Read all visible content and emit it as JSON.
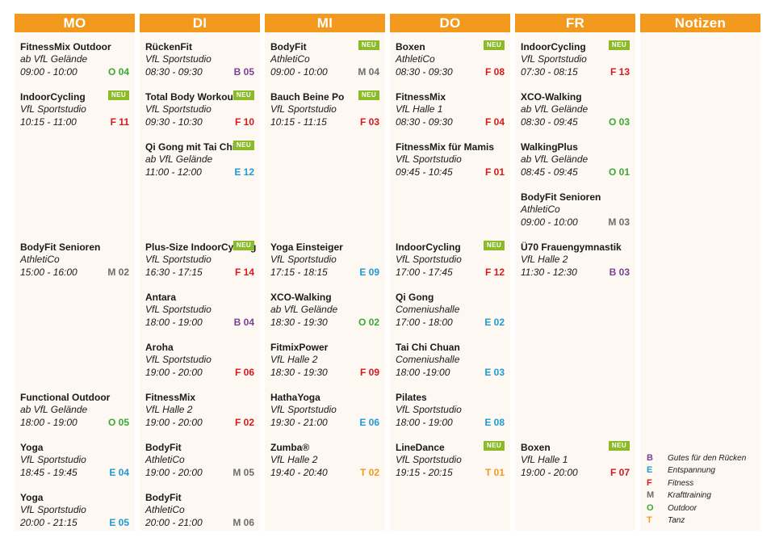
{
  "colors": {
    "header": "#f39a1e",
    "neu_badge": "#8bbb29",
    "column_bg": "#fdf8f1",
    "B": "#7b3f98",
    "E": "#1e9ad6",
    "F": "#d7191c",
    "M": "#6d6d6d",
    "O": "#3aa935",
    "T": "#f39a1e"
  },
  "days": [
    {
      "label": "MO",
      "entries": [
        {
          "slot": 0,
          "title": "FitnessMix Outdoor",
          "location": "ab VfL Gelände",
          "time": "09:00 - 10:00",
          "code": "O 04",
          "cat": "O",
          "neu": false
        },
        {
          "slot": 1,
          "title": "IndoorCycling",
          "location": "VfL Sportstudio",
          "time": "10:15 - 11:00",
          "code": "F 11",
          "cat": "F",
          "neu": true
        },
        {
          "slot": 4,
          "title": "BodyFit Senioren",
          "location": "AthletiCo",
          "time": "15:00 - 16:00",
          "code": "M 02",
          "cat": "M",
          "neu": false
        },
        {
          "slot": 7,
          "title": "Functional Outdoor",
          "location": "ab VfL Gelände",
          "time": "18:00 - 19:00",
          "code": "O 05",
          "cat": "O",
          "neu": false
        },
        {
          "slot": 8,
          "title": "Yoga",
          "location": "VfL Sportstudio",
          "time": "18:45 - 19:45",
          "code": "E 04",
          "cat": "E",
          "neu": false
        },
        {
          "slot": 9,
          "title": "Yoga",
          "location": "VfL Sportstudio",
          "time": "20:00 - 21:15",
          "code": "E 05",
          "cat": "E",
          "neu": false
        }
      ]
    },
    {
      "label": "DI",
      "entries": [
        {
          "slot": 0,
          "title": "RückenFit",
          "location": "VfL Sportstudio",
          "time": "08:30 - 09:30",
          "code": "B 05",
          "cat": "B",
          "neu": false
        },
        {
          "slot": 1,
          "title": "Total Body Workout",
          "location": "VfL Sportstudio",
          "time": "09:30 - 10:30",
          "code": "F 10",
          "cat": "F",
          "neu": true
        },
        {
          "slot": 2,
          "title": "Qi Gong mit Tai Chi",
          "location": "ab VfL Gelände",
          "time": "11:00 - 12:00",
          "code": "E 12",
          "cat": "E",
          "neu": true
        },
        {
          "slot": 4,
          "title": "Plus-Size IndoorCycling",
          "location": "VfL Sportstudio",
          "time": "16:30 - 17:15",
          "code": "F 14",
          "cat": "F",
          "neu": true
        },
        {
          "slot": 5,
          "title": "Antara",
          "location": "VfL Sportstudio",
          "time": "18:00 - 19:00",
          "code": "B 04",
          "cat": "B",
          "neu": false
        },
        {
          "slot": 6,
          "title": "Aroha",
          "location": "VfL Sportstudio",
          "time": "19:00 - 20:00",
          "code": "F 06",
          "cat": "F",
          "neu": false
        },
        {
          "slot": 7,
          "title": "FitnessMix",
          "location": "VfL Halle 2",
          "time": "19:00 - 20:00",
          "code": "F 02",
          "cat": "F",
          "neu": false
        },
        {
          "slot": 8,
          "title": "BodyFit",
          "location": "AthletiCo",
          "time": "19:00 - 20:00",
          "code": "M 05",
          "cat": "M",
          "neu": false
        },
        {
          "slot": 9,
          "title": "BodyFit",
          "location": "AthletiCo",
          "time": "20:00 - 21:00",
          "code": "M 06",
          "cat": "M",
          "neu": false
        }
      ]
    },
    {
      "label": "MI",
      "entries": [
        {
          "slot": 0,
          "title": "BodyFit",
          "location": "AthletiCo",
          "time": "09:00 - 10:00",
          "code": "M 04",
          "cat": "M",
          "neu": true
        },
        {
          "slot": 1,
          "title": "Bauch Beine Po",
          "location": "VfL Sportstudio",
          "time": "10:15 - 11:15",
          "code": "F 03",
          "cat": "F",
          "neu": true
        },
        {
          "slot": 4,
          "title": "Yoga Einsteiger",
          "location": "VfL Sportstudio",
          "time": "17:15 - 18:15",
          "code": "E 09",
          "cat": "E",
          "neu": false
        },
        {
          "slot": 5,
          "title": "XCO-Walking",
          "location": "ab VfL Gelände",
          "time": "18:30 - 19:30",
          "code": "O 02",
          "cat": "O",
          "neu": false
        },
        {
          "slot": 6,
          "title": "FitmixPower",
          "location": "VfL Halle 2",
          "time": "18:30 - 19:30",
          "code": "F 09",
          "cat": "F",
          "neu": false
        },
        {
          "slot": 7,
          "title": "HathaYoga",
          "location": "VfL Sportstudio",
          "time": "19:30 - 21:00",
          "code": "E 06",
          "cat": "E",
          "neu": false
        },
        {
          "slot": 8,
          "title": "Zumba®",
          "location": "VfL Halle 2",
          "time": "19:40 - 20:40",
          "code": "T 02",
          "cat": "T",
          "neu": false
        }
      ]
    },
    {
      "label": "DO",
      "entries": [
        {
          "slot": 0,
          "title": "Boxen",
          "location": "AthletiCo",
          "time": "08:30 - 09:30",
          "code": "F 08",
          "cat": "F",
          "neu": true
        },
        {
          "slot": 1,
          "title": "FitnessMix",
          "location": "VfL Halle 1",
          "time": "08:30 - 09:30",
          "code": "F 04",
          "cat": "F",
          "neu": false
        },
        {
          "slot": 2,
          "title": "FitnessMix für Mamis",
          "location": "VfL Sportstudio",
          "time": "09:45 - 10:45",
          "code": "F 01",
          "cat": "F",
          "neu": false
        },
        {
          "slot": 4,
          "title": "IndoorCycling",
          "location": "VfL Sportstudio",
          "time": "17:00 - 17:45",
          "code": "F 12",
          "cat": "F",
          "neu": true
        },
        {
          "slot": 5,
          "title": "Qi Gong",
          "location": "Comeniushalle",
          "time": "17:00 - 18:00",
          "code": "E 02",
          "cat": "E",
          "neu": false
        },
        {
          "slot": 6,
          "title": "Tai Chi Chuan",
          "location": "Comeniushalle",
          "time": "18:00 -19:00",
          "code": "E 03",
          "cat": "E",
          "neu": false
        },
        {
          "slot": 7,
          "title": "Pilates",
          "location": "VfL Sportstudio",
          "time": "18:00 - 19:00",
          "code": "E 08",
          "cat": "E",
          "neu": false
        },
        {
          "slot": 8,
          "title": "LineDance",
          "location": "VfL Sportstudio",
          "time": "19:15 - 20:15",
          "code": "T 01",
          "cat": "T",
          "neu": true
        }
      ]
    },
    {
      "label": "FR",
      "entries": [
        {
          "slot": 0,
          "title": "IndoorCycling",
          "location": "VfL Sportstudio",
          "time": "07:30 - 08:15",
          "code": "F 13",
          "cat": "F",
          "neu": true
        },
        {
          "slot": 1,
          "title": "XCO-Walking",
          "location": "ab VfL Gelände",
          "time": "08:30 - 09:45",
          "code": "O 03",
          "cat": "O",
          "neu": false
        },
        {
          "slot": 2,
          "title": "WalkingPlus",
          "location": "ab VfL Gelände",
          "time": "08:45 - 09:45",
          "code": "O 01",
          "cat": "O",
          "neu": false
        },
        {
          "slot": 3,
          "title": "BodyFit Senioren",
          "location": "AthletiCo",
          "time": "09:00 - 10:00",
          "code": "M 03",
          "cat": "M",
          "neu": false
        },
        {
          "slot": 4,
          "title": "Ü70 Frauengymnastik",
          "location": "VfL Halle 2",
          "time": "11:30 - 12:30",
          "code": "B 03",
          "cat": "B",
          "neu": false
        },
        {
          "slot": 8,
          "title": "Boxen",
          "location": "VfL Halle 1",
          "time": "19:00 - 20:00",
          "code": "F 07",
          "cat": "F",
          "neu": true
        }
      ]
    }
  ],
  "notes_header": "Notizen",
  "neu_label": "NEU",
  "legend": [
    {
      "key": "B",
      "label": "Gutes für den Rücken"
    },
    {
      "key": "E",
      "label": "Entspannung"
    },
    {
      "key": "F",
      "label": "Fitness"
    },
    {
      "key": "M",
      "label": "Krafttraining"
    },
    {
      "key": "O",
      "label": "Outdoor"
    },
    {
      "key": "T",
      "label": "Tanz"
    }
  ]
}
